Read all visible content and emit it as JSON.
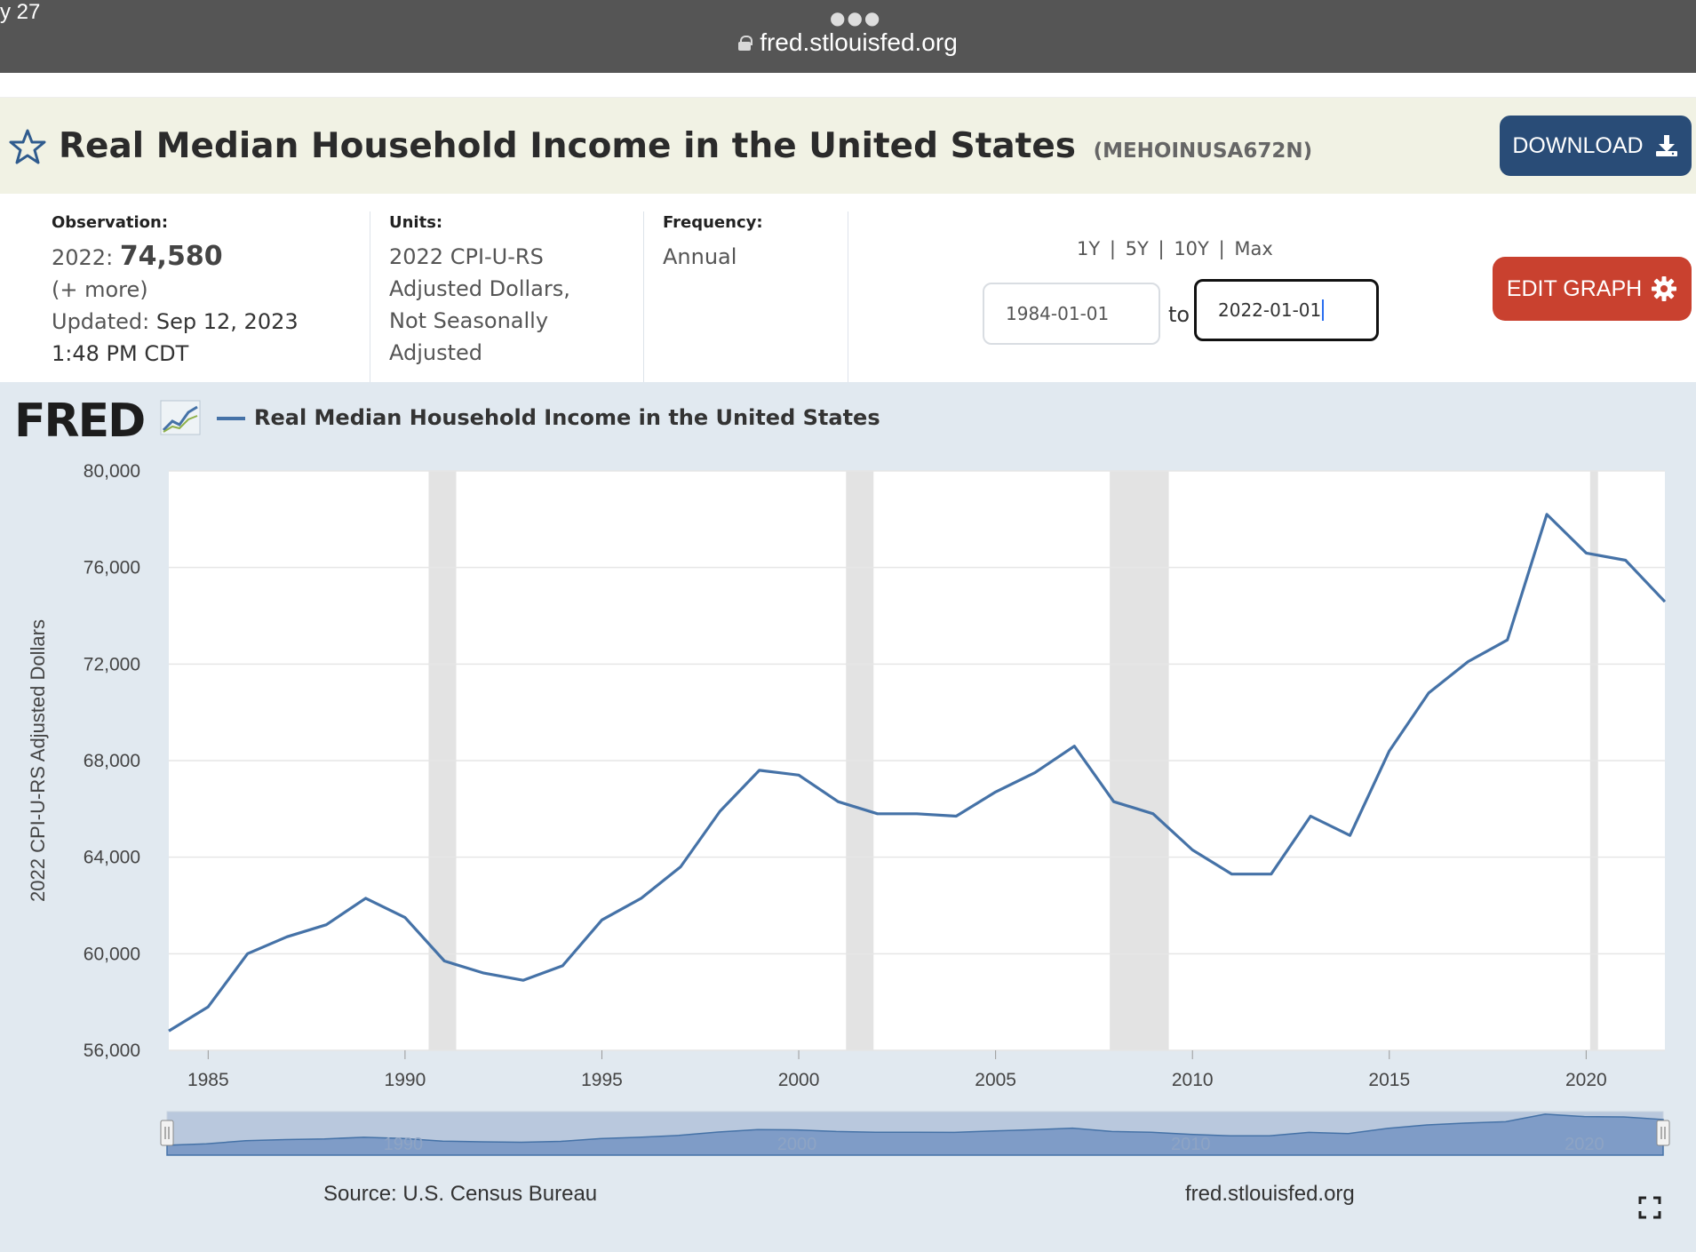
{
  "browser": {
    "time_fragment": "y 27",
    "url": "fred.stlouisfed.org"
  },
  "header": {
    "title": "Real Median Household Income in the United States",
    "series_id": "(MEHOINUSA672N)",
    "download_label": "DOWNLOAD"
  },
  "meta": {
    "observation_label": "Observation:",
    "observation_year": "2022:",
    "observation_value": "74,580",
    "more_link": "(+ more)",
    "updated_label": "Updated:",
    "updated_date": "Sep 12, 2023",
    "updated_time": "1:48 PM CDT",
    "units_label": "Units:",
    "units_line1": "2022 CPI-U-RS",
    "units_line2": "Adjusted Dollars,",
    "units_line3": "Not Seasonally",
    "units_line4": "Adjusted",
    "frequency_label": "Frequency:",
    "frequency_value": "Annual"
  },
  "controls": {
    "range_1y": "1Y",
    "range_5y": "5Y",
    "range_10y": "10Y",
    "range_max": "Max",
    "separator": "|",
    "start_date": "1984-01-01",
    "to_label": "to",
    "end_date": "2022-01-01",
    "edit_graph_label": "EDIT GRAPH"
  },
  "graph": {
    "logo_text": "FRED",
    "legend_label": "Real Median Household Income in the United States",
    "line_color": "#4572a7",
    "recession_color": "#e3e3e3",
    "source": "Source: U.S. Census Bureau",
    "site": "fred.stlouisfed.org",
    "navigator_labels": [
      "1990",
      "2000",
      "2010",
      "2020"
    ]
  },
  "chart_data": {
    "type": "line",
    "title": "Real Median Household Income in the United States",
    "ylabel": "2022 CPI-U-RS Adjusted Dollars",
    "xlabel": "",
    "xlim": [
      1984,
      2022
    ],
    "ylim": [
      56000,
      80000
    ],
    "yticks": [
      56000,
      60000,
      64000,
      68000,
      72000,
      76000,
      80000
    ],
    "ytick_labels": [
      "56,000",
      "60,000",
      "64,000",
      "68,000",
      "72,000",
      "76,000",
      "80,000"
    ],
    "xticks": [
      1985,
      1990,
      1995,
      2000,
      2005,
      2010,
      2015,
      2020
    ],
    "grid": true,
    "recessions": [
      [
        1990.6,
        1991.3
      ],
      [
        2001.2,
        2001.9
      ],
      [
        2007.9,
        2009.4
      ],
      [
        2020.1,
        2020.3
      ]
    ],
    "series": [
      {
        "name": "Real Median Household Income in the United States",
        "x": [
          1984,
          1985,
          1986,
          1987,
          1988,
          1989,
          1990,
          1991,
          1992,
          1993,
          1994,
          1995,
          1996,
          1997,
          1998,
          1999,
          2000,
          2001,
          2002,
          2003,
          2004,
          2005,
          2006,
          2007,
          2008,
          2009,
          2010,
          2011,
          2012,
          2013,
          2014,
          2015,
          2016,
          2017,
          2018,
          2019,
          2020,
          2021,
          2022
        ],
        "y": [
          56800,
          57800,
          60000,
          60700,
          61200,
          62300,
          61500,
          59700,
          59200,
          58900,
          59500,
          61400,
          62300,
          63600,
          65900,
          67600,
          67400,
          66300,
          65800,
          65800,
          65700,
          66700,
          67500,
          68600,
          66300,
          65800,
          64300,
          63300,
          63300,
          65700,
          64900,
          68400,
          70800,
          72100,
          73000,
          78200,
          76600,
          76300,
          74580
        ]
      }
    ]
  }
}
